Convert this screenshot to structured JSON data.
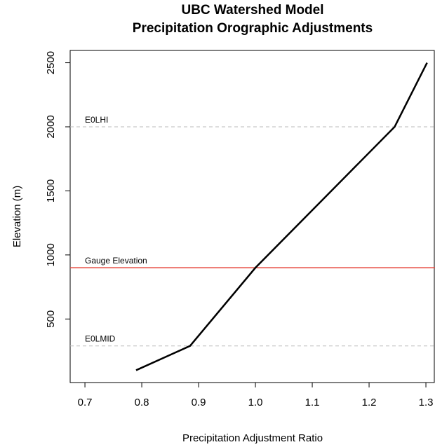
{
  "chart_data": {
    "type": "line",
    "title": [
      "UBC Watershed Model",
      "Precipitation Orographic Adjustments"
    ],
    "x_label": "Precipitation Adjustment Ratio",
    "y_label": "Elevation (m)",
    "series": [
      {
        "color": "#000000",
        "x": [
          0.79,
          0.885,
          1.0,
          1.245,
          1.302
        ],
        "values": [
          100,
          290,
          900,
          2000,
          2500
        ]
      }
    ],
    "hlines": [
      {
        "label": "E0LHI",
        "value": 2000,
        "color": "#bbbbbb",
        "dashed": true
      },
      {
        "label": "Gauge Elevation",
        "value": 900,
        "color": "#e8493f",
        "dashed": false
      },
      {
        "label": "E0LMID",
        "value": 290,
        "color": "#bbbbbb",
        "dashed": true
      }
    ],
    "xlim": [
      0.674,
      1.316
    ],
    "ylim": [
      4,
      2596
    ],
    "xticks": [
      0.7,
      0.8,
      0.9,
      {
        "value": 1,
        "label": "1.0"
      },
      1.1,
      1.2,
      1.3
    ],
    "yticks": [
      500,
      1000,
      1500,
      2000,
      2500
    ]
  }
}
